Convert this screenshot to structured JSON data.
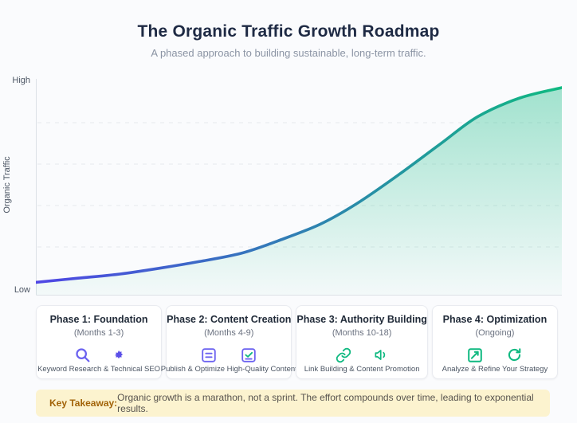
{
  "page": {
    "title": "The Organic Traffic Growth Roadmap",
    "subtitle": "A phased approach to building sustainable, long-term traffic."
  },
  "chart": {
    "y_axis_title": "Organic Traffic",
    "y_axis_high_label": "High",
    "y_axis_low_label": "Low"
  },
  "chart_data": {
    "type": "area",
    "title": "The Organic Traffic Growth Roadmap",
    "description": "Single S-shaped (logistic) growth curve of organic traffic over time, rising slowly at first then compounding to exponential growth; no x tick labels shown",
    "xlabel": "",
    "ylabel": "Organic Traffic",
    "y_tick_labels": [
      "Low",
      "High"
    ],
    "ylim": [
      0,
      1
    ],
    "grid": "horizontal-dashed",
    "x_percent": [
      0,
      8,
      16,
      24,
      31,
      39,
      46,
      54,
      61,
      69,
      77,
      84,
      92,
      100
    ],
    "traffic_relative": [
      0.06,
      0.08,
      0.1,
      0.13,
      0.16,
      0.2,
      0.26,
      0.34,
      0.44,
      0.58,
      0.73,
      0.86,
      0.95,
      1.0
    ],
    "line_gradient": [
      "#4f46e5",
      "#10b981"
    ],
    "fill_gradient": [
      {
        "color": "#10b981",
        "opacity": 0.38
      },
      {
        "color": "#10b981",
        "opacity": 0.03
      }
    ]
  },
  "phases": [
    {
      "title": "Phase 1: Foundation",
      "period": "(Months 1-3)",
      "description": "Keyword Research & Technical SEO",
      "icons": [
        "search-icon",
        "gear-icon"
      ],
      "accent": "#6c63f0"
    },
    {
      "title": "Phase 2: Content Creation",
      "period": "(Months 4-9)",
      "description": "Publish & Optimize High-Quality Content",
      "icons": [
        "document-lines-icon",
        "checklist-icon"
      ],
      "accent": "#6c63f0"
    },
    {
      "title": "Phase 3: Authority Building",
      "period": "(Months 10-18)",
      "description": "Link Building & Content Promotion",
      "icons": [
        "link-icon",
        "megaphone-icon"
      ],
      "accent": "#10b981"
    },
    {
      "title": "Phase 4: Optimization",
      "period": "(Ongoing)",
      "description": "Analyze & Refine Your Strategy",
      "icons": [
        "chart-trend-icon",
        "refresh-icon"
      ],
      "accent": "#10b981"
    }
  ],
  "takeaway": {
    "label": "Key Takeaway:",
    "text": "Organic growth is a marathon, not a sprint. The effort compounds over time, leading to exponential results.",
    "background": "#fcf3cf",
    "label_color": "#a16207"
  }
}
